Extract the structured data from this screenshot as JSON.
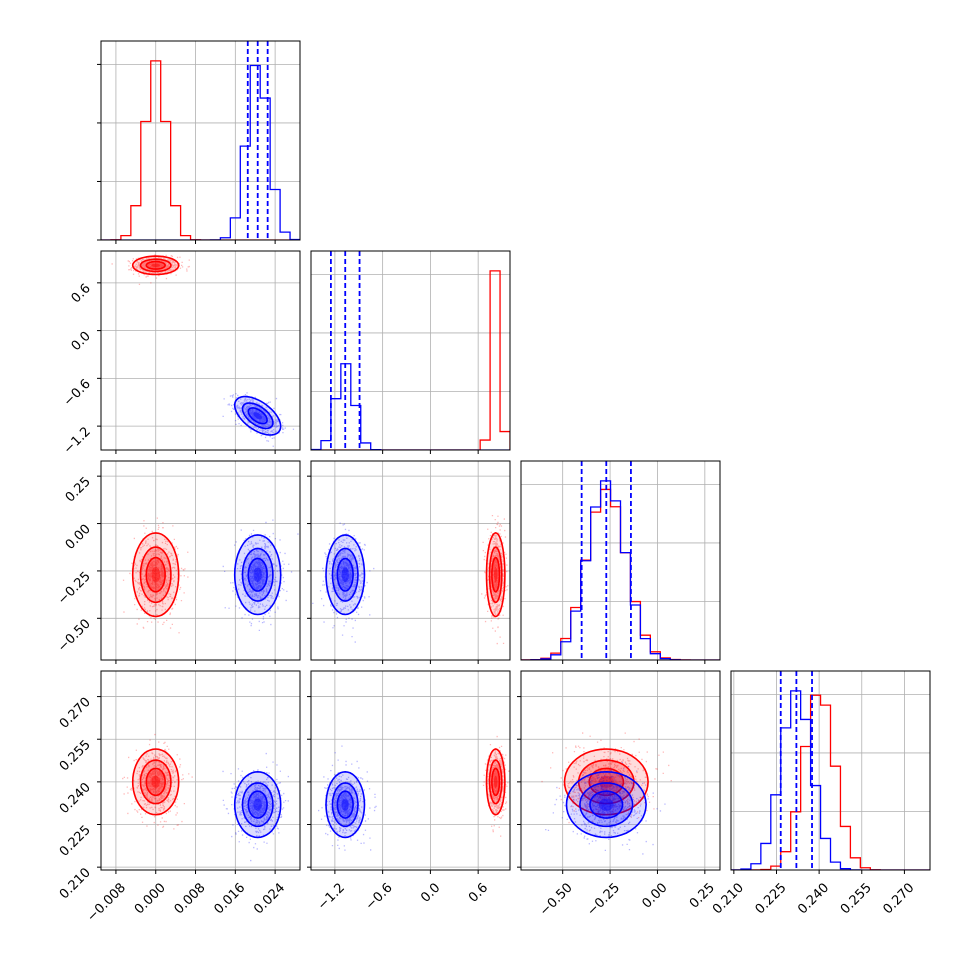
{
  "chart_data": {
    "type": "corner",
    "parameters": [
      {
        "ticks": [
          -0.008,
          0.0,
          0.008,
          0.016,
          0.024
        ],
        "tick_labels": [
          "−0.008",
          "0.000",
          "0.008",
          "0.016",
          "0.024"
        ],
        "range": [
          -0.011,
          0.029
        ]
      },
      {
        "ticks": [
          -1.2,
          -0.6,
          0.0,
          0.6
        ],
        "tick_labels": [
          "−1.2",
          "−0.6",
          "0.0",
          "0.6"
        ],
        "range": [
          -1.5,
          1.0
        ]
      },
      {
        "ticks": [
          -0.5,
          -0.25,
          0.0,
          0.25
        ],
        "tick_labels": [
          "−0.50",
          "−0.25",
          "0.00",
          "0.25"
        ],
        "range": [
          -0.72,
          0.33
        ]
      },
      {
        "ticks": [
          0.21,
          0.225,
          0.24,
          0.255,
          0.27
        ],
        "tick_labels": [
          "0.210",
          "0.225",
          "0.240",
          "0.255",
          "0.270"
        ],
        "range": [
          0.209,
          0.279
        ]
      }
    ],
    "series": [
      {
        "color": "#ff0000",
        "means": [
          0.0,
          0.82,
          -0.27,
          0.24
        ],
        "sds": [
          0.0022,
          0.055,
          0.105,
          0.0055
        ],
        "correlations": {
          "0-1": 0.0,
          "0-2": 0.0,
          "0-3": 0.0,
          "1-2": 0.0,
          "1-3": 0.0,
          "2-3": 0.0
        },
        "quantile_lines": false
      },
      {
        "color": "#0000ff",
        "means": [
          0.0205,
          -1.07,
          -0.27,
          0.232
        ],
        "sds": [
          0.0022,
          0.115,
          0.1,
          0.0055
        ],
        "correlations": {
          "0-1": -0.55,
          "0-2": 0.0,
          "0-3": 0.0,
          "1-2": 0.0,
          "1-3": 0.0,
          "2-3": 0.0
        },
        "quantiles": [
          [
            0.0185,
            0.0205,
            0.0225
          ],
          [
            -1.25,
            -1.07,
            -0.89
          ],
          [
            -0.4,
            -0.27,
            -0.14
          ],
          [
            0.2265,
            0.232,
            0.2375
          ]
        ],
        "quantile_lines": true
      }
    ],
    "grid": true,
    "legend": "none"
  }
}
